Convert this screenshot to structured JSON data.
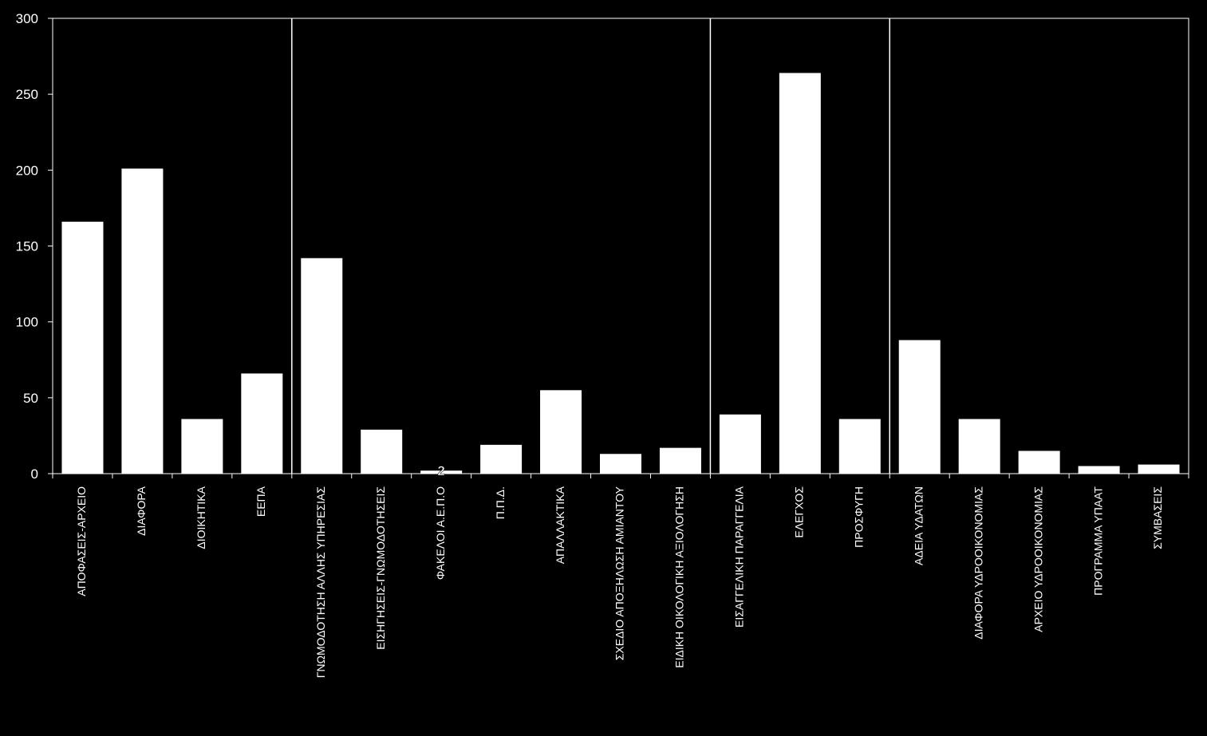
{
  "colors": {
    "background": "#000000",
    "bar": "#ffffff",
    "axis": "#ffffff",
    "text": "#ffffff",
    "data_label": "#ffffff"
  },
  "chart_data": {
    "type": "bar",
    "title": "",
    "xlabel": "",
    "ylabel": "",
    "ylim": [
      0,
      300
    ],
    "yticks": [
      0,
      50,
      100,
      150,
      200,
      250,
      300
    ],
    "grid": false,
    "legend": "none",
    "group_separators_after_index": [
      3,
      10,
      13
    ],
    "categories": [
      "ΑΠΟΦΑΣΕΙΣ-ΑΡΧΕΙΟ",
      "ΔΙΑΦΟΡΑ",
      "ΔΙΟΙΚΗΤΙΚΑ",
      "ΕΕΠΑ",
      "ΓΝΩΜΟΔΟΤΗΣΗ ΑΛΛΗΣ ΥΠΗΡΕΣΙΑΣ",
      "ΕΙΣΗΓΗΣΕΙΣ-ΓΝΩΜΟΔΟΤΗΣΕΙΣ",
      "ΦΑΚΕΛΟΙ Α.Ε.Π.Ο",
      "Π.Π.Δ.",
      "ΑΠΑΛΛΑΚΤΙΚΑ",
      "ΣΧΕΔΙΟ ΑΠΟΞΗΛΩΣΗ ΑΜΙΑΝΤΟΥ",
      "ΕΙΔΙΚΗ ΟΙΚΟΛΟΓΙΚΗ ΑΞΙΟΛΟΓΗΣΗ",
      "ΕΙΣΑΓΓΕΛΙΚΗ ΠΑΡΑΓΓΕΛΙΑ",
      "ΕΛΕΓΧΟΣ",
      "ΠΡΟΣΦΥΓΗ",
      "ΑΔΕΙΑ ΥΔΑΤΩΝ",
      "ΔΙΑΦΟΡΑ ΥΔΡΟΟΙΚΟΝΟΜΙΑΣ",
      "ΑΡΧΕΙΟ ΥΔΡΟΟΙΚΟΝΟΜΙΑΣ",
      "ΠΡΟΓΡΑΜΜΑ ΥΠΑΑΤ",
      "ΣΥΜΒΑΣΕΙΣ"
    ],
    "values": [
      166,
      201,
      36,
      66,
      142,
      29,
      2,
      19,
      55,
      13,
      17,
      39,
      264,
      36,
      88,
      36,
      15,
      5,
      6
    ],
    "data_labels": [
      {
        "index": 6,
        "text": "2"
      }
    ]
  }
}
